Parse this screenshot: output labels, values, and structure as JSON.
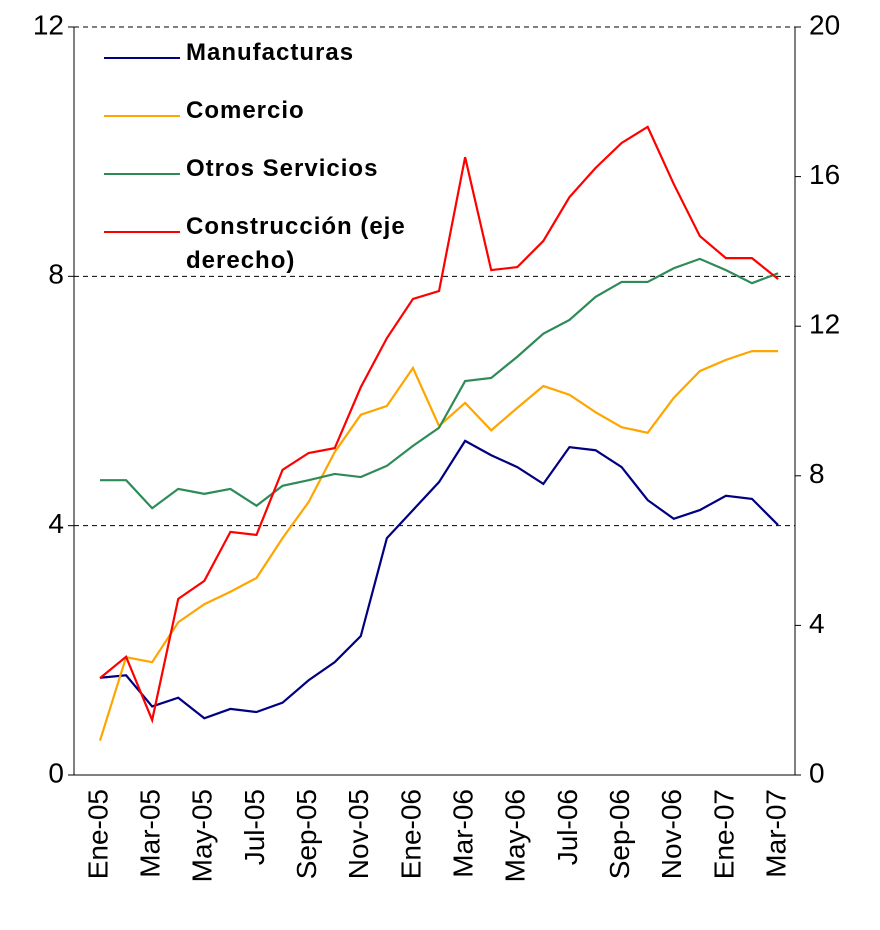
{
  "chart_data": {
    "type": "line",
    "categories": [
      "Ene-05",
      null,
      "Mar-05",
      null,
      "May-05",
      null,
      "Jul-05",
      null,
      "Sep-05",
      null,
      "Nov-05",
      null,
      "Ene-06",
      null,
      "Mar-06",
      null,
      "May-06",
      null,
      "Jul-06",
      null,
      "Sep-06",
      null,
      "Nov-06",
      null,
      "Ene-07",
      null,
      "Mar-07"
    ],
    "ylim": [
      0,
      12
    ],
    "yticks": [
      0,
      4,
      8,
      12
    ],
    "y2lim": [
      0,
      20
    ],
    "y2ticks": [
      0,
      4,
      8,
      12,
      16,
      20
    ],
    "grid": true,
    "legend": "upper-left",
    "series": [
      {
        "name": "Manufacturas",
        "color": "#000080",
        "values": [
          1.56,
          1.6,
          1.1,
          1.24,
          0.91,
          1.06,
          1.01,
          1.16,
          1.52,
          1.81,
          2.23,
          3.8,
          4.25,
          4.7,
          5.36,
          5.13,
          4.94,
          4.67,
          5.26,
          5.21,
          4.94,
          4.41,
          4.11,
          4.25,
          4.48,
          4.43,
          4.01
        ]
      },
      {
        "name": "Comercio",
        "color": "#ffa500",
        "values": [
          0.55,
          1.89,
          1.81,
          2.45,
          2.74,
          2.94,
          3.16,
          3.8,
          4.38,
          5.18,
          5.78,
          5.92,
          6.53,
          5.6,
          5.97,
          5.53,
          5.89,
          6.24,
          6.1,
          5.82,
          5.58,
          5.49,
          6.05,
          6.48,
          6.66,
          6.8,
          6.8
        ]
      },
      {
        "name": "Otros Servicios",
        "color": "#2e8b57",
        "values": [
          4.73,
          4.73,
          4.28,
          4.59,
          4.51,
          4.59,
          4.32,
          4.64,
          4.73,
          4.83,
          4.78,
          4.96,
          5.28,
          5.57,
          6.32,
          6.37,
          6.71,
          7.08,
          7.3,
          7.67,
          7.91,
          7.91,
          8.13,
          8.28,
          8.1,
          7.89,
          8.05
        ]
      },
      {
        "name": "Construcción (eje derecho)",
        "color": "#ff0000",
        "axis": "y2",
        "values": [
          2.59,
          3.16,
          1.47,
          4.71,
          5.19,
          6.5,
          6.42,
          8.16,
          8.61,
          8.74,
          10.37,
          11.68,
          12.73,
          12.94,
          16.52,
          13.5,
          13.58,
          14.28,
          15.45,
          16.23,
          16.9,
          17.33,
          15.8,
          14.41,
          13.82,
          13.82,
          13.26
        ]
      }
    ]
  }
}
